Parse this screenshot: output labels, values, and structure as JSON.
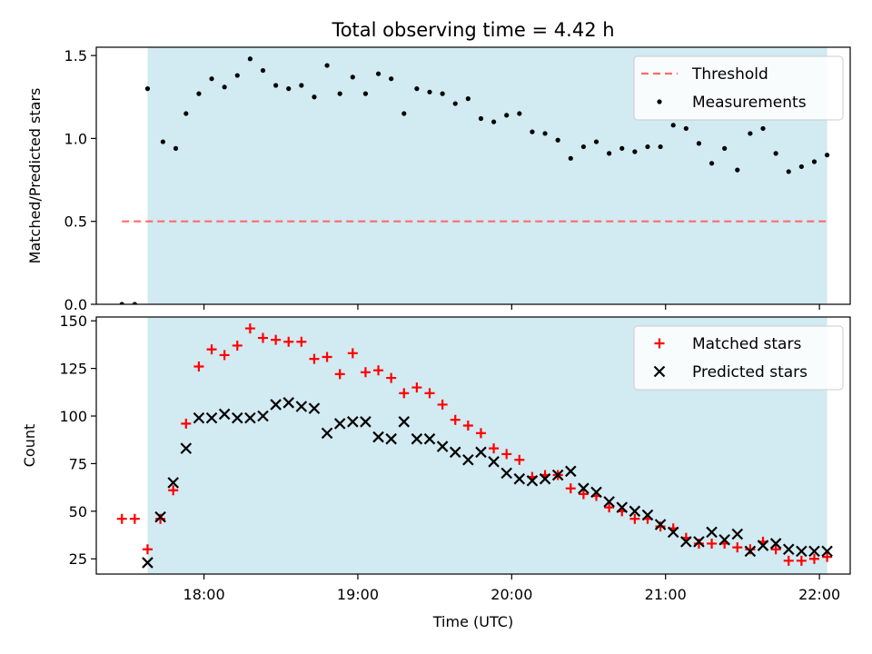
{
  "chart_data": {
    "title": "Total observing time = 4.42 h",
    "xlabel": "Time (UTC)",
    "x_axis": {
      "type": "time",
      "range": [
        "17:18",
        "22:12"
      ],
      "ticks": [
        "18:00",
        "19:00",
        "20:00",
        "21:00",
        "22:00"
      ]
    },
    "shaded_span": {
      "start": "17:38",
      "end": "22:03",
      "color": "#add8e6"
    },
    "panels": [
      {
        "type": "scatter",
        "ylabel": "Matched/Predicted stars",
        "ylim": [
          0,
          1.55
        ],
        "yticks": [
          "0.0",
          "0.5",
          "1.0",
          "1.5"
        ],
        "legend_position": "top-right",
        "series": [
          {
            "name": "Threshold",
            "kind": "dashed-line",
            "color": "#ff6b6b",
            "points": [
              [
                "17:28",
                0.5
              ],
              [
                "22:03",
                0.5
              ]
            ]
          },
          {
            "name": "Measurements",
            "kind": "dot",
            "color": "#000000",
            "points": [
              [
                "17:28",
                0.0
              ],
              [
                "17:33",
                0.0
              ],
              [
                "17:38",
                1.3
              ],
              [
                "17:44",
                0.98
              ],
              [
                "17:49",
                0.94
              ],
              [
                "17:53",
                1.15
              ],
              [
                "17:58",
                1.27
              ],
              [
                "18:03",
                1.36
              ],
              [
                "18:08",
                1.31
              ],
              [
                "18:13",
                1.38
              ],
              [
                "18:18",
                1.48
              ],
              [
                "18:23",
                1.41
              ],
              [
                "18:28",
                1.32
              ],
              [
                "18:33",
                1.3
              ],
              [
                "18:38",
                1.32
              ],
              [
                "18:43",
                1.25
              ],
              [
                "18:48",
                1.44
              ],
              [
                "18:53",
                1.27
              ],
              [
                "18:58",
                1.37
              ],
              [
                "19:03",
                1.27
              ],
              [
                "19:08",
                1.39
              ],
              [
                "19:13",
                1.36
              ],
              [
                "19:18",
                1.15
              ],
              [
                "19:23",
                1.3
              ],
              [
                "19:28",
                1.28
              ],
              [
                "19:33",
                1.27
              ],
              [
                "19:38",
                1.21
              ],
              [
                "19:43",
                1.24
              ],
              [
                "19:48",
                1.12
              ],
              [
                "19:53",
                1.1
              ],
              [
                "19:58",
                1.14
              ],
              [
                "20:03",
                1.15
              ],
              [
                "20:08",
                1.04
              ],
              [
                "20:13",
                1.03
              ],
              [
                "20:18",
                0.99
              ],
              [
                "20:23",
                0.88
              ],
              [
                "20:28",
                0.95
              ],
              [
                "20:33",
                0.98
              ],
              [
                "20:38",
                0.91
              ],
              [
                "20:43",
                0.94
              ],
              [
                "20:48",
                0.92
              ],
              [
                "20:53",
                0.95
              ],
              [
                "20:58",
                0.95
              ],
              [
                "21:03",
                1.08
              ],
              [
                "21:08",
                1.06
              ],
              [
                "21:13",
                0.97
              ],
              [
                "21:18",
                0.85
              ],
              [
                "21:23",
                0.94
              ],
              [
                "21:28",
                0.81
              ],
              [
                "21:33",
                1.03
              ],
              [
                "21:38",
                1.06
              ],
              [
                "21:43",
                0.91
              ],
              [
                "21:48",
                0.8
              ],
              [
                "21:53",
                0.83
              ],
              [
                "21:58",
                0.86
              ],
              [
                "22:03",
                0.9
              ]
            ]
          }
        ]
      },
      {
        "type": "scatter",
        "ylabel": "Count",
        "ylim": [
          17,
          152
        ],
        "yticks": [
          "25",
          "50",
          "75",
          "100",
          "125",
          "150"
        ],
        "legend_position": "top-right",
        "series": [
          {
            "name": "Matched stars",
            "kind": "plus",
            "color": "#ff0000",
            "points": [
              [
                "17:28",
                46
              ],
              [
                "17:33",
                46
              ],
              [
                "17:38",
                30
              ],
              [
                "17:43",
                46
              ],
              [
                "17:48",
                61
              ],
              [
                "17:53",
                96
              ],
              [
                "17:58",
                126
              ],
              [
                "18:03",
                135
              ],
              [
                "18:08",
                132
              ],
              [
                "18:13",
                137
              ],
              [
                "18:18",
                146
              ],
              [
                "18:23",
                141
              ],
              [
                "18:28",
                140
              ],
              [
                "18:33",
                139
              ],
              [
                "18:38",
                139
              ],
              [
                "18:43",
                130
              ],
              [
                "18:48",
                131
              ],
              [
                "18:53",
                122
              ],
              [
                "18:58",
                133
              ],
              [
                "19:03",
                123
              ],
              [
                "19:08",
                124
              ],
              [
                "19:13",
                120
              ],
              [
                "19:18",
                112
              ],
              [
                "19:23",
                115
              ],
              [
                "19:28",
                112
              ],
              [
                "19:33",
                106
              ],
              [
                "19:38",
                98
              ],
              [
                "19:43",
                95
              ],
              [
                "19:48",
                91
              ],
              [
                "19:53",
                83
              ],
              [
                "19:58",
                80
              ],
              [
                "20:03",
                77
              ],
              [
                "20:08",
                68
              ],
              [
                "20:13",
                69
              ],
              [
                "20:18",
                69
              ],
              [
                "20:23",
                62
              ],
              [
                "20:28",
                59
              ],
              [
                "20:33",
                58
              ],
              [
                "20:38",
                52
              ],
              [
                "20:43",
                50
              ],
              [
                "20:48",
                46
              ],
              [
                "20:53",
                46
              ],
              [
                "20:58",
                42
              ],
              [
                "21:03",
                41
              ],
              [
                "21:08",
                36
              ],
              [
                "21:13",
                33
              ],
              [
                "21:18",
                33
              ],
              [
                "21:23",
                33
              ],
              [
                "21:28",
                31
              ],
              [
                "21:33",
                30
              ],
              [
                "21:38",
                34
              ],
              [
                "21:43",
                30
              ],
              [
                "21:48",
                24
              ],
              [
                "21:53",
                24
              ],
              [
                "21:58",
                25
              ],
              [
                "22:03",
                26
              ]
            ]
          },
          {
            "name": "Predicted stars",
            "kind": "x",
            "color": "#000000",
            "points": [
              [
                "17:38",
                23
              ],
              [
                "17:43",
                47
              ],
              [
                "17:48",
                65
              ],
              [
                "17:53",
                83
              ],
              [
                "17:58",
                99
              ],
              [
                "18:03",
                99
              ],
              [
                "18:08",
                101
              ],
              [
                "18:13",
                99
              ],
              [
                "18:18",
                99
              ],
              [
                "18:23",
                100
              ],
              [
                "18:28",
                106
              ],
              [
                "18:33",
                107
              ],
              [
                "18:38",
                105
              ],
              [
                "18:43",
                104
              ],
              [
                "18:48",
                91
              ],
              [
                "18:53",
                96
              ],
              [
                "18:58",
                97
              ],
              [
                "19:03",
                97
              ],
              [
                "19:08",
                89
              ],
              [
                "19:13",
                88
              ],
              [
                "19:18",
                97
              ],
              [
                "19:23",
                88
              ],
              [
                "19:28",
                88
              ],
              [
                "19:33",
                84
              ],
              [
                "19:38",
                81
              ],
              [
                "19:43",
                77
              ],
              [
                "19:48",
                81
              ],
              [
                "19:53",
                76
              ],
              [
                "19:58",
                70
              ],
              [
                "20:03",
                67
              ],
              [
                "20:08",
                66
              ],
              [
                "20:13",
                67
              ],
              [
                "20:18",
                69
              ],
              [
                "20:23",
                71
              ],
              [
                "20:28",
                62
              ],
              [
                "20:33",
                60
              ],
              [
                "20:38",
                55
              ],
              [
                "20:43",
                52
              ],
              [
                "20:48",
                50
              ],
              [
                "20:53",
                48
              ],
              [
                "20:58",
                43
              ],
              [
                "21:03",
                39
              ],
              [
                "21:08",
                34
              ],
              [
                "21:13",
                34
              ],
              [
                "21:18",
                39
              ],
              [
                "21:23",
                35
              ],
              [
                "21:28",
                38
              ],
              [
                "21:33",
                29
              ],
              [
                "21:38",
                32
              ],
              [
                "21:43",
                33
              ],
              [
                "21:48",
                30
              ],
              [
                "21:53",
                29
              ],
              [
                "21:58",
                29
              ],
              [
                "22:03",
                29
              ]
            ]
          }
        ]
      }
    ]
  }
}
